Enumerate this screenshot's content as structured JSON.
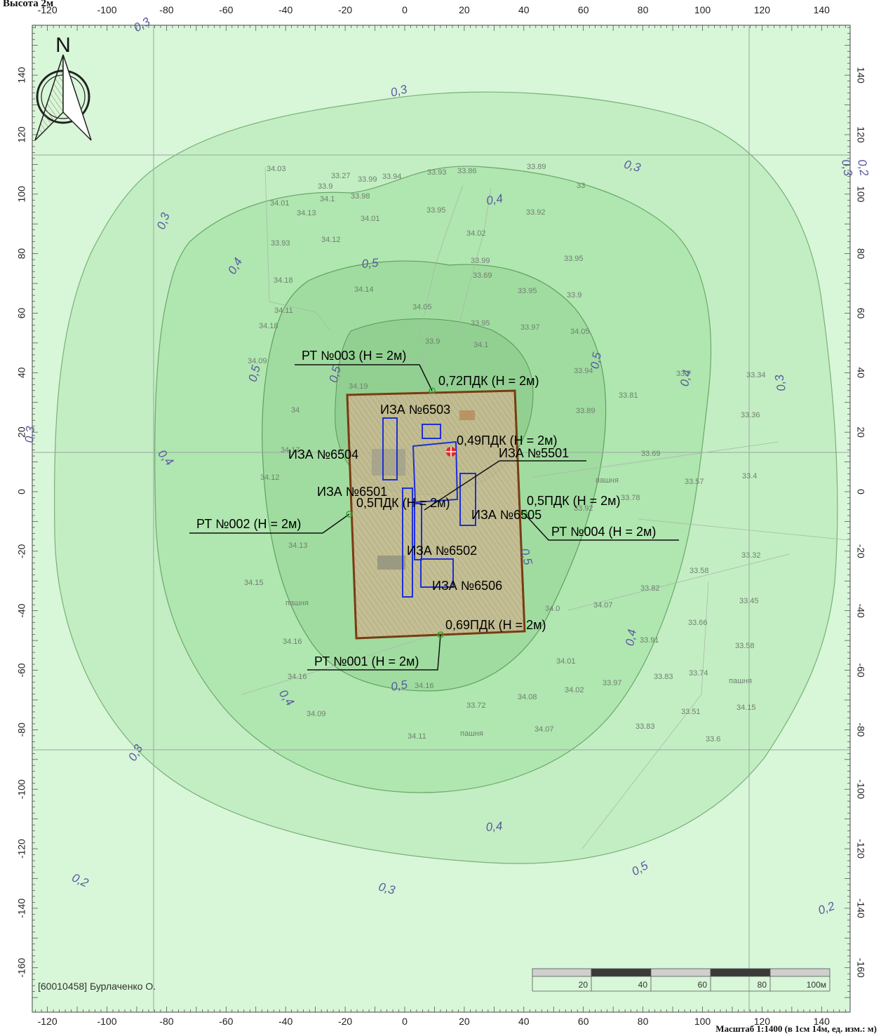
{
  "header": {
    "height_label": "Высота 2м"
  },
  "footer": {
    "author": "[60010458] Бурлаченко О.",
    "scale_note": "Масштаб 1:1400 (в 1см 14м, ед. изм.: м)"
  },
  "north_arrow": {
    "letter": "N",
    "icon": "north-arrow-icon"
  },
  "axes": {
    "x_ticks": [
      "-120",
      "-100",
      "-80",
      "-60",
      "-40",
      "-20",
      "0",
      "20",
      "40",
      "60",
      "80",
      "100",
      "120",
      "140"
    ],
    "y_ticks": [
      "140",
      "120",
      "100",
      "80",
      "60",
      "40",
      "20",
      "0",
      "-20",
      "-40",
      "-60",
      "-80",
      "-100",
      "-120",
      "-140",
      "-160"
    ]
  },
  "scale_bar": {
    "labels": [
      "20",
      "40",
      "60",
      "80",
      "100м"
    ]
  },
  "contour_labels": [
    "0,3",
    "0,3",
    "0,3",
    "0,3",
    "0,3",
    "0,3",
    "0,3",
    "0,3",
    "0,3",
    "0,2",
    "0,2",
    "0,2",
    "0,4",
    "0,4",
    "0,4",
    "0,4",
    "0,4",
    "0,4",
    "0,4",
    "0,5",
    "0,5",
    "0,5",
    "0,5",
    "0,5",
    "0,5",
    "0,5"
  ],
  "terrain_labels": [
    "34.03",
    "33.27",
    "33.99",
    "33.94",
    "33.93",
    "33.86",
    "33.89",
    "33.9",
    "34.1",
    "33.98",
    "33",
    "34.01",
    "34.13",
    "33.95",
    "33.92",
    "34.01",
    "34.02",
    "33.93",
    "34.12",
    "33.99",
    "33.95",
    "34.18",
    "33.69",
    "34.14",
    "33.95",
    "33.9",
    "34.11",
    "34.05",
    "34.18",
    "33.95",
    "33.97",
    "34.05",
    "33.9",
    "34.1",
    "34.09",
    "34.19",
    "33.94",
    "34",
    "33.89",
    "33.81",
    "33.34",
    "33.7",
    "33.36",
    "34.17",
    "33.69",
    "34.12",
    "пашня",
    "33.57",
    "33.4",
    "33.92",
    "33.78",
    "34.13",
    "33.32",
    "34.15",
    "33.58",
    "33.82",
    "пашня",
    "34.07",
    "34.0",
    "33.45",
    "33.66",
    "33.91",
    "34.16",
    "33.58",
    "34.01",
    "34.16",
    "33.83",
    "33.74",
    "пашня",
    "33.97",
    "34.02",
    "34.08",
    "34.16",
    "33.72",
    "33.51",
    "34.15",
    "34.09",
    "33.83",
    "34.07",
    "34.11",
    "пашня",
    "33.6"
  ],
  "sources": [
    {
      "label": "ИЗА №6503"
    },
    {
      "label": "ИЗА №6504"
    },
    {
      "label": "ИЗА №5501"
    },
    {
      "label": "ИЗА №6501"
    },
    {
      "label": "ИЗА №6505"
    },
    {
      "label": "ИЗА №6502"
    },
    {
      "label": "ИЗА №6506"
    }
  ],
  "points": [
    {
      "name": "РТ №003 (Н = 2м)",
      "value": "0,72ПДК (Н = 2м)"
    },
    {
      "name": "РТ №002 (Н = 2м)",
      "value": "0,5ПДК (Н = 2м)"
    },
    {
      "name": "РТ №004 (Н = 2м)",
      "value": "0,5ПДК (Н = 2м)"
    },
    {
      "name": "РТ №001 (Н = 2м)",
      "value": "0,69ПДК (Н = 2м)"
    },
    {
      "name": "",
      "value": "0,49ПДК (Н = 2м)"
    }
  ],
  "colors": {
    "background": "#d9f5d9",
    "contour_stroke": "#6aa86a",
    "contour_label": "#5a5aa0",
    "site_border": "#7a3b12",
    "site_fill": "#c9b890",
    "source_outline": "#1f2fd6",
    "grid": "#9aa7a0",
    "pdk_marker": "#e02a2a"
  }
}
